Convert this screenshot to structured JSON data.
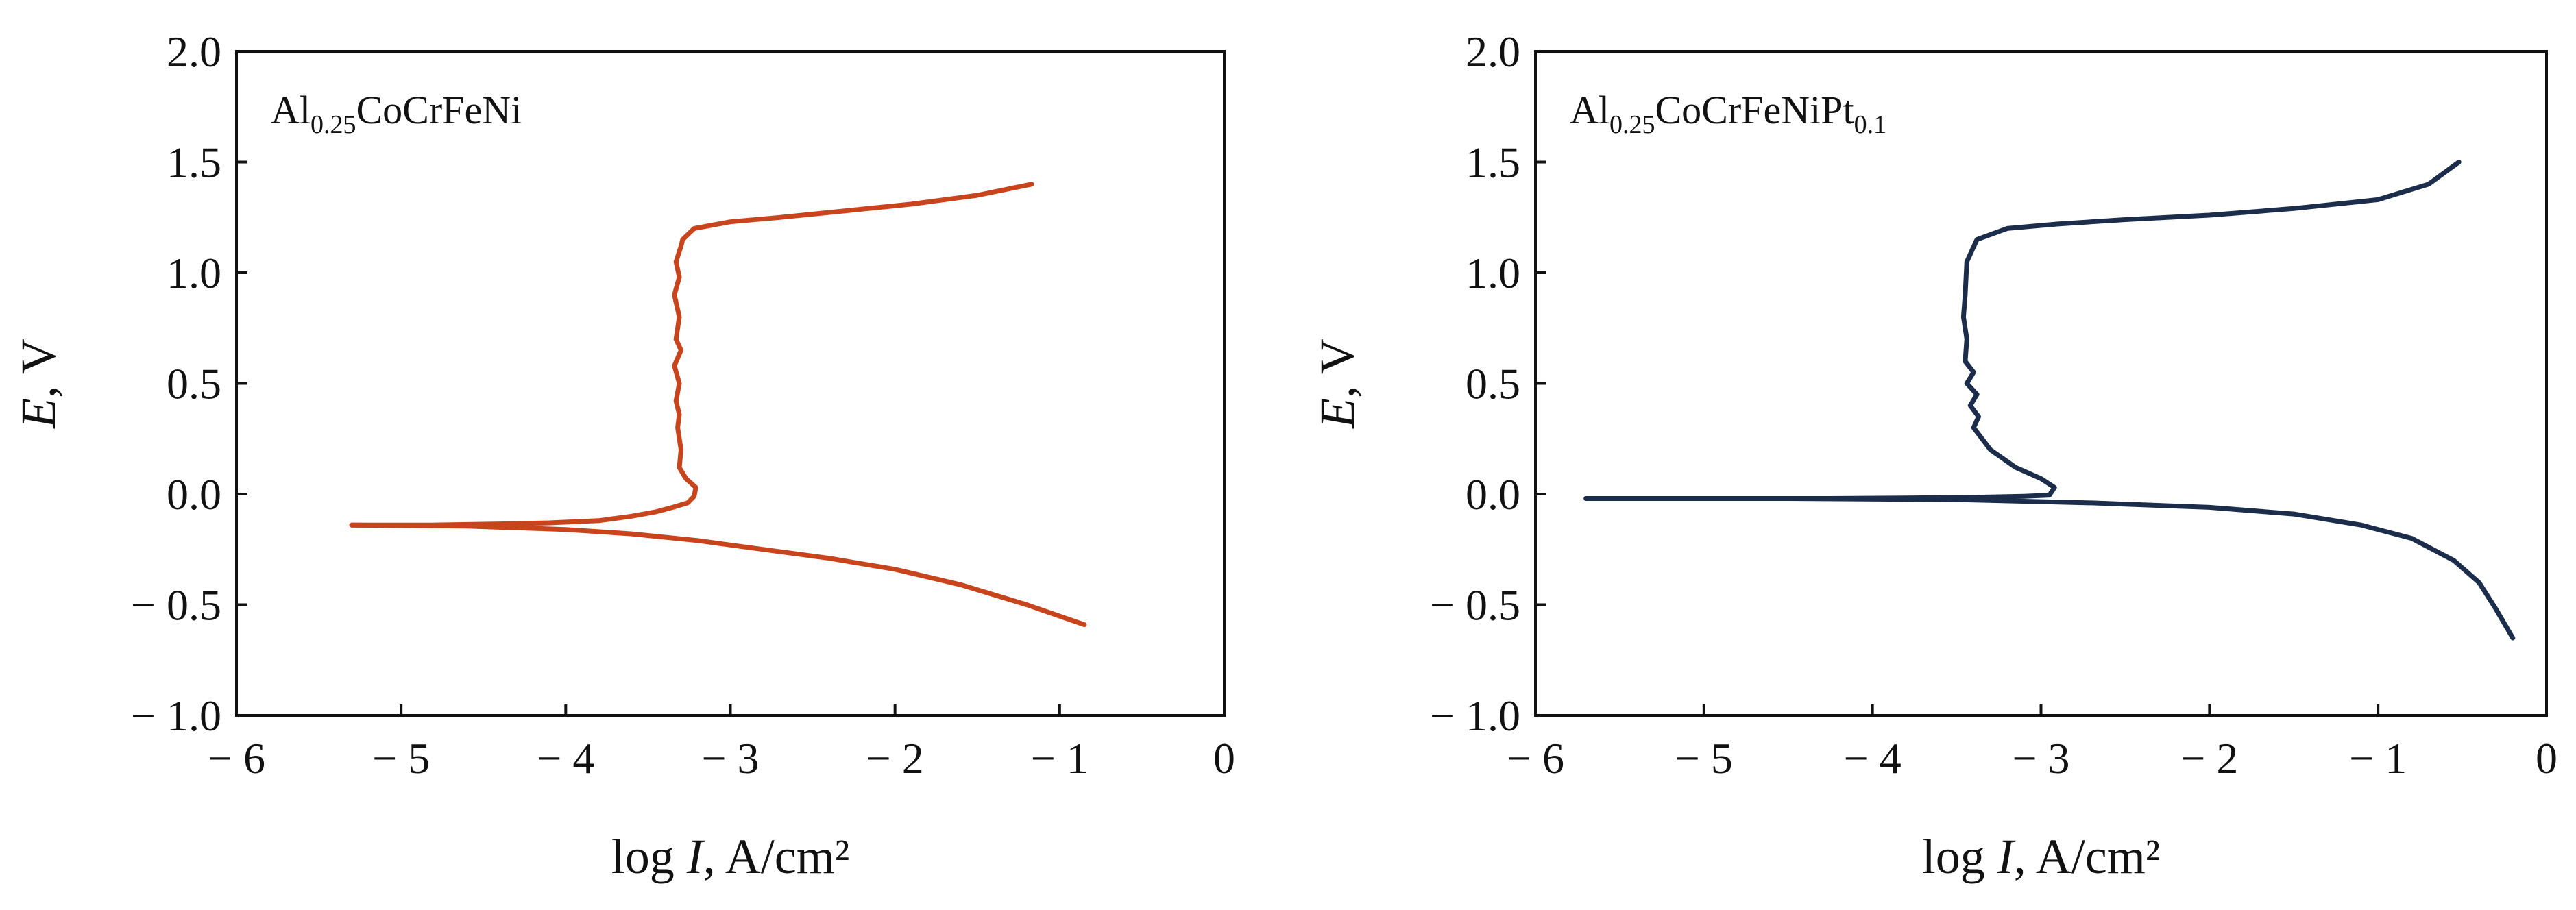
{
  "chart_data": [
    {
      "type": "line",
      "xlim": [
        -6,
        0
      ],
      "ylim": [
        -1.0,
        2.0
      ],
      "x_ticks": [
        -6,
        -5,
        -4,
        -3,
        -2,
        -1,
        0
      ],
      "x_tick_labels": [
        "− 6",
        "− 5",
        "− 4",
        "− 3",
        "− 2",
        "− 1",
        "0"
      ],
      "y_ticks": [
        2.0,
        1.5,
        1.0,
        0.5,
        0.0,
        -0.5,
        -1.0
      ],
      "y_tick_labels": [
        "2.0",
        "1.5",
        "1.0",
        "0.5",
        "0.0",
        "− 0.5",
        "− 1.0"
      ],
      "xlabel": {
        "prefix": "log ",
        "italic": "I",
        "suffix": ", A/cm²"
      },
      "ylabel": {
        "italic": "E",
        "suffix": ", V"
      },
      "annotation": {
        "base": "Al",
        "sub1": "0.25",
        "mid": "CoCrFeNi",
        "sub2": "",
        "end": ""
      },
      "grid": false,
      "series": [
        {
          "color": "#c8441c",
          "x": [
            -5.3,
            -4.8,
            -4.4,
            -4.1,
            -3.8,
            -3.6,
            -3.45,
            -3.35,
            -3.26,
            -3.22,
            -3.21,
            -3.24,
            -3.27,
            -3.31,
            -3.3,
            -3.32,
            -3.31,
            -3.33,
            -3.31,
            -3.34,
            -3.3,
            -3.33,
            -3.31,
            -3.34,
            -3.31,
            -3.33,
            -3.3,
            -3.29,
            -3.22,
            -3.0,
            -2.7,
            -2.3,
            -1.9,
            -1.5,
            -1.17
          ],
          "y": [
            -0.14,
            -0.14,
            -0.135,
            -0.13,
            -0.12,
            -0.1,
            -0.08,
            -0.06,
            -0.04,
            -0.01,
            0.03,
            0.05,
            0.07,
            0.12,
            0.2,
            0.3,
            0.36,
            0.42,
            0.5,
            0.58,
            0.65,
            0.7,
            0.8,
            0.9,
            0.98,
            1.05,
            1.12,
            1.15,
            1.2,
            1.23,
            1.25,
            1.28,
            1.31,
            1.35,
            1.4
          ]
        },
        {
          "color": "#c8441c",
          "x": [
            -5.3,
            -4.6,
            -4.0,
            -3.6,
            -3.2,
            -2.8,
            -2.4,
            -2.0,
            -1.6,
            -1.2,
            -0.85
          ],
          "y": [
            -0.14,
            -0.145,
            -0.16,
            -0.18,
            -0.21,
            -0.25,
            -0.29,
            -0.34,
            -0.41,
            -0.5,
            -0.59
          ]
        }
      ]
    },
    {
      "type": "line",
      "xlim": [
        -6,
        0
      ],
      "ylim": [
        -1.0,
        2.0
      ],
      "x_ticks": [
        -6,
        -5,
        -4,
        -3,
        -2,
        -1,
        0
      ],
      "x_tick_labels": [
        "− 6",
        "− 5",
        "− 4",
        "− 3",
        "− 2",
        "− 1",
        "0"
      ],
      "y_ticks": [
        2.0,
        1.5,
        1.0,
        0.5,
        0.0,
        -0.5,
        -1.0
      ],
      "y_tick_labels": [
        "2.0",
        "1.5",
        "1.0",
        "0.5",
        "0.0",
        "− 0.5",
        "− 1.0"
      ],
      "xlabel": {
        "prefix": "log ",
        "italic": "I",
        "suffix": ", A/cm²"
      },
      "ylabel": {
        "italic": "E",
        "suffix": ", V"
      },
      "annotation": {
        "base": "Al",
        "sub1": "0.25",
        "mid": "CoCrFeNiPt",
        "sub2": "0.1",
        "end": ""
      },
      "grid": false,
      "series": [
        {
          "color": "#1b2d4a",
          "x": [
            -5.7,
            -5.0,
            -4.3,
            -3.8,
            -3.4,
            -3.1,
            -2.95,
            -2.92,
            -3.0,
            -3.15,
            -3.3,
            -3.4,
            -3.37,
            -3.42,
            -3.38,
            -3.44,
            -3.4,
            -3.45,
            -3.44,
            -3.46,
            -3.45,
            -3.44,
            -3.38,
            -3.2,
            -2.9,
            -2.5,
            -2.0,
            -1.5,
            -1.0,
            -0.7,
            -0.52
          ],
          "y": [
            -0.02,
            -0.02,
            -0.02,
            -0.018,
            -0.015,
            -0.01,
            -0.005,
            0.03,
            0.07,
            0.12,
            0.2,
            0.3,
            0.35,
            0.4,
            0.45,
            0.5,
            0.55,
            0.6,
            0.7,
            0.8,
            0.9,
            1.05,
            1.15,
            1.2,
            1.22,
            1.24,
            1.26,
            1.29,
            1.33,
            1.4,
            1.5
          ]
        },
        {
          "color": "#1b2d4a",
          "x": [
            -5.7,
            -4.5,
            -3.5,
            -2.7,
            -2.0,
            -1.5,
            -1.1,
            -0.8,
            -0.55,
            -0.4,
            -0.3,
            -0.2
          ],
          "y": [
            -0.02,
            -0.02,
            -0.025,
            -0.04,
            -0.06,
            -0.09,
            -0.14,
            -0.2,
            -0.3,
            -0.4,
            -0.52,
            -0.65
          ]
        }
      ]
    }
  ]
}
